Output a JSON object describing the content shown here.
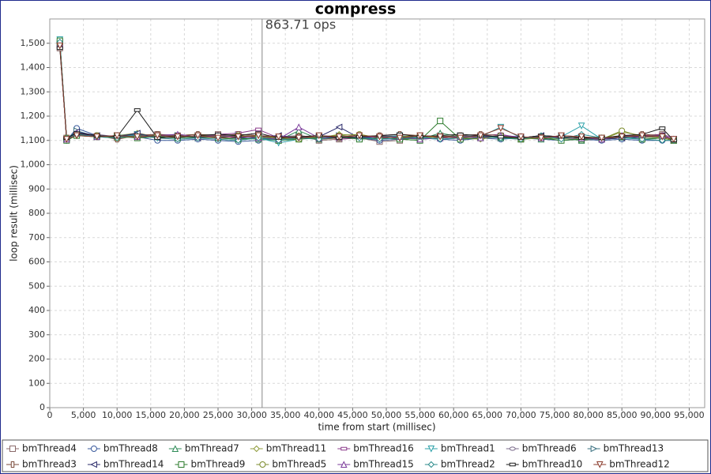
{
  "chart_data": {
    "type": "line",
    "title": "compress",
    "x_label": "time from start (millisec)",
    "y_label": "loop result (millisec)",
    "annotation": {
      "text": "863.71 ops",
      "x": 31550
    },
    "xlim": [
      0,
      97300
    ],
    "ylim": [
      0,
      1600
    ],
    "grid": true,
    "xticks": [
      0,
      {
        "value": 5000,
        "label": "5,000"
      },
      {
        "value": 10000,
        "label": "10,000"
      },
      {
        "value": 15000,
        "label": "15,000"
      },
      {
        "value": 20000,
        "label": "20,000"
      },
      {
        "value": 25000,
        "label": "25,000"
      },
      {
        "value": 30000,
        "label": "30,000"
      },
      {
        "value": 35000,
        "label": "35,000"
      },
      {
        "value": 40000,
        "label": "40,000"
      },
      {
        "value": 45000,
        "label": "45,000"
      },
      {
        "value": 50000,
        "label": "50,000"
      },
      {
        "value": 55000,
        "label": "55,000"
      },
      {
        "value": 60000,
        "label": "60,000"
      },
      {
        "value": 65000,
        "label": "65,000"
      },
      {
        "value": 70000,
        "label": "70,000"
      },
      {
        "value": 75000,
        "label": "75,000"
      },
      {
        "value": 80000,
        "label": "80,000"
      },
      {
        "value": 85000,
        "label": "85,000"
      },
      {
        "value": 90000,
        "label": "90,000"
      },
      {
        "value": 95000,
        "label": "95,000"
      }
    ],
    "yticks": [
      0,
      100,
      200,
      300,
      400,
      500,
      600,
      700,
      800,
      900,
      {
        "value": 1000,
        "label": "1,000"
      },
      {
        "value": 1100,
        "label": "1,100"
      },
      {
        "value": 1200,
        "label": "1,200"
      },
      {
        "value": 1300,
        "label": "1,300"
      },
      {
        "value": 1400,
        "label": "1,400"
      },
      {
        "value": 1500,
        "label": "1,500"
      }
    ],
    "x": [
      1500,
      2500,
      4000,
      7000,
      10000,
      13000,
      16000,
      19000,
      22000,
      25000,
      28000,
      31000,
      34000,
      37000,
      40000,
      43000,
      46000,
      49000,
      52000,
      55000,
      58000,
      61000,
      64000,
      67000,
      70000,
      73000,
      76000,
      79000,
      82000,
      85000,
      88000,
      91000,
      92700
    ],
    "series": [
      {
        "name": "bmThread4",
        "color": "#8a6a6a",
        "marker": "square",
        "values": [
          1480,
          1110,
          1125,
          1115,
          1110,
          1120,
          1125,
          1120,
          1115,
          1125,
          1120,
          1115,
          1110,
          1120,
          1100,
          1105,
          1110,
          1095,
          1100,
          1115,
          1120,
          1110,
          1115,
          1110,
          1105,
          1115,
          1110,
          1100,
          1105,
          1110,
          1115,
          1125,
          1100
        ]
      },
      {
        "name": "bmThread8",
        "color": "#3a5a9c",
        "marker": "circle",
        "values": [
          1500,
          1100,
          1150,
          1120,
          1110,
          1115,
          1100,
          1100,
          1105,
          1100,
          1095,
          1100,
          1110,
          1110,
          1120,
          1115,
          1110,
          1100,
          1105,
          1110,
          1105,
          1100,
          1110,
          1105,
          1110,
          1105,
          1100,
          1105,
          1100,
          1105,
          1100,
          1100,
          1100
        ]
      },
      {
        "name": "bmThread7",
        "color": "#2e8b57",
        "marker": "triangle-up",
        "values": [
          1510,
          1105,
          1130,
          1120,
          1115,
          1125,
          1120,
          1115,
          1120,
          1115,
          1110,
          1105,
          1100,
          1140,
          1105,
          1110,
          1115,
          1120,
          1110,
          1105,
          1130,
          1115,
          1120,
          1110,
          1115,
          1105,
          1110,
          1100,
          1110,
          1120,
          1115,
          1110,
          1100
        ]
      },
      {
        "name": "bmThread11",
        "color": "#8e9a3a",
        "marker": "diamond",
        "values": [
          1505,
          1110,
          1120,
          1115,
          1120,
          1130,
          1115,
          1120,
          1125,
          1120,
          1115,
          1110,
          1105,
          1120,
          1110,
          1125,
          1120,
          1110,
          1115,
          1110,
          1115,
          1110,
          1105,
          1120,
          1110,
          1115,
          1105,
          1110,
          1105,
          1135,
          1120,
          1115,
          1105
        ]
      },
      {
        "name": "bmThread16",
        "color": "#8b3a8b",
        "marker": "rect-wide",
        "values": [
          1495,
          1105,
          1125,
          1120,
          1115,
          1120,
          1125,
          1115,
          1120,
          1125,
          1130,
          1145,
          1110,
          1115,
          1120,
          1105,
          1110,
          1120,
          1115,
          1120,
          1110,
          1115,
          1120,
          1125,
          1110,
          1120,
          1115,
          1110,
          1110,
          1115,
          1120,
          1125,
          1110
        ]
      },
      {
        "name": "bmThread1",
        "color": "#2aa0a8",
        "marker": "triangle-down",
        "values": [
          1515,
          1100,
          1130,
          1115,
          1110,
          1125,
          1110,
          1115,
          1120,
          1110,
          1105,
          1110,
          1090,
          1105,
          1115,
          1110,
          1115,
          1105,
          1120,
          1110,
          1105,
          1110,
          1115,
          1155,
          1110,
          1110,
          1115,
          1160,
          1105,
          1110,
          1105,
          1110,
          1100
        ]
      },
      {
        "name": "bmThread6",
        "color": "#7a6a8a",
        "marker": "ellipse",
        "values": [
          1490,
          1110,
          1120,
          1125,
          1115,
          1110,
          1120,
          1125,
          1115,
          1120,
          1125,
          1120,
          1115,
          1120,
          1110,
          1115,
          1120,
          1115,
          1110,
          1120,
          1115,
          1110,
          1120,
          1115,
          1110,
          1120,
          1110,
          1105,
          1110,
          1115,
          1110,
          1120,
          1105
        ]
      },
      {
        "name": "bmThread13",
        "color": "#3a7080",
        "marker": "triangle-right",
        "values": [
          1500,
          1105,
          1140,
          1115,
          1120,
          1125,
          1115,
          1120,
          1110,
          1115,
          1120,
          1115,
          1105,
          1110,
          1115,
          1120,
          1110,
          1115,
          1120,
          1105,
          1110,
          1120,
          1115,
          1110,
          1115,
          1110,
          1120,
          1115,
          1105,
          1110,
          1115,
          1110,
          1100
        ]
      },
      {
        "name": "bmThread3",
        "color": "#7a4a3a",
        "marker": "rect-tall",
        "values": [
          1485,
          1110,
          1125,
          1120,
          1105,
          1120,
          1125,
          1120,
          1125,
          1120,
          1125,
          1120,
          1110,
          1115,
          1105,
          1110,
          1115,
          1120,
          1125,
          1120,
          1115,
          1120,
          1125,
          1120,
          1110,
          1115,
          1110,
          1115,
          1105,
          1115,
          1125,
          1120,
          1100
        ]
      },
      {
        "name": "bmThread14",
        "color": "#2a2a6a",
        "marker": "triangle-left",
        "values": [
          1505,
          1105,
          1135,
          1120,
          1115,
          1130,
          1110,
          1115,
          1110,
          1115,
          1110,
          1115,
          1120,
          1110,
          1115,
          1155,
          1110,
          1115,
          1110,
          1120,
          1115,
          1110,
          1120,
          1115,
          1110,
          1120,
          1115,
          1110,
          1105,
          1110,
          1115,
          1120,
          1105
        ]
      },
      {
        "name": "bmThread9",
        "color": "#2a7a2a",
        "marker": "square",
        "values": [
          1510,
          1100,
          1120,
          1115,
          1120,
          1110,
          1115,
          1110,
          1115,
          1110,
          1105,
          1110,
          1100,
          1105,
          1110,
          1115,
          1105,
          1110,
          1105,
          1100,
          1180,
          1105,
          1110,
          1115,
          1105,
          1110,
          1100,
          1105,
          1110,
          1115,
          1105,
          1110,
          1100
        ]
      },
      {
        "name": "bmThread5",
        "color": "#7a8a2a",
        "marker": "circle",
        "values": [
          1500,
          1110,
          1125,
          1120,
          1110,
          1115,
          1120,
          1115,
          1120,
          1115,
          1120,
          1115,
          1110,
          1105,
          1115,
          1120,
          1125,
          1110,
          1115,
          1120,
          1110,
          1115,
          1110,
          1120,
          1105,
          1110,
          1115,
          1110,
          1105,
          1140,
          1115,
          1110,
          1100
        ]
      },
      {
        "name": "bmThread15",
        "color": "#7a3a9a",
        "marker": "triangle-up",
        "values": [
          1495,
          1105,
          1130,
          1115,
          1120,
          1115,
          1120,
          1125,
          1115,
          1120,
          1115,
          1110,
          1105,
          1155,
          1110,
          1115,
          1120,
          1110,
          1115,
          1105,
          1110,
          1115,
          1110,
          1120,
          1115,
          1110,
          1115,
          1110,
          1105,
          1120,
          1115,
          1120,
          1105
        ]
      },
      {
        "name": "bmThread2",
        "color": "#2a8a8a",
        "marker": "diamond",
        "values": [
          1505,
          1110,
          1125,
          1115,
          1110,
          1120,
          1110,
          1105,
          1110,
          1105,
          1100,
          1110,
          1100,
          1110,
          1105,
          1115,
          1110,
          1105,
          1110,
          1115,
          1105,
          1110,
          1120,
          1110,
          1105,
          1120,
          1105,
          1125,
          1110,
          1115,
          1105,
          1100,
          1100
        ]
      },
      {
        "name": "bmThread10",
        "color": "#1a1a1a",
        "marker": "rect-wide",
        "values": [
          1480,
          1110,
          1130,
          1120,
          1115,
          1225,
          1110,
          1115,
          1120,
          1125,
          1120,
          1130,
          1110,
          1115,
          1120,
          1110,
          1115,
          1120,
          1125,
          1115,
          1120,
          1125,
          1120,
          1115,
          1110,
          1120,
          1115,
          1110,
          1110,
          1120,
          1125,
          1150,
          1100
        ]
      },
      {
        "name": "bmThread12",
        "color": "#8a3a2a",
        "marker": "triangle-down",
        "values": [
          1490,
          1105,
          1120,
          1115,
          1120,
          1115,
          1120,
          1115,
          1120,
          1110,
          1115,
          1120,
          1115,
          1110,
          1120,
          1115,
          1120,
          1115,
          1110,
          1120,
          1115,
          1110,
          1120,
          1150,
          1115,
          1110,
          1120,
          1115,
          1110,
          1115,
          1120,
          1115,
          1105
        ]
      }
    ]
  }
}
